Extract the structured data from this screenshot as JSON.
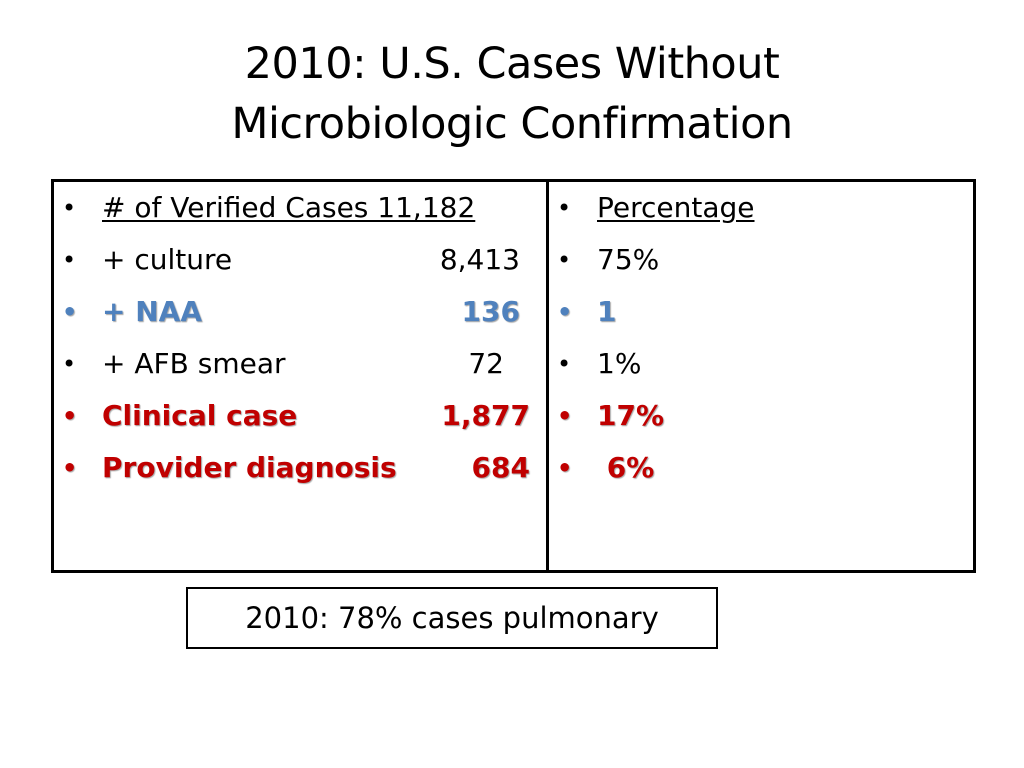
{
  "title": {
    "line1": "2010:  U.S. Cases Without",
    "line2": "Microbiologic Confirmation"
  },
  "left_column": {
    "header": "# of Verified Cases 11,182",
    "rows": [
      {
        "label": "+ culture",
        "value": "8,413",
        "style": "normal"
      },
      {
        "label": "+ NAA",
        "value": "136",
        "style": "blue"
      },
      {
        "label": "+ AFB smear",
        "value": "72",
        "style": "normal"
      },
      {
        "label": "Clinical case",
        "value": "1,877",
        "style": "red"
      },
      {
        "label": "Provider diagnosis",
        "value": "684",
        "style": "red"
      }
    ]
  },
  "right_column": {
    "header": "Percentage",
    "rows": [
      {
        "value": "75%",
        "style": "normal"
      },
      {
        "value": "1",
        "style": "blue"
      },
      {
        "value": "1%",
        "style": "normal"
      },
      {
        "value": "17%",
        "style": "red"
      },
      {
        "value": " 6%",
        "style": "red"
      }
    ]
  },
  "bullet_glyph": "•",
  "footer": "2010:  78% cases pulmonary",
  "colors": {
    "blue_highlight": "#4f81bd",
    "red_highlight": "#c00000",
    "border": "#000000"
  }
}
